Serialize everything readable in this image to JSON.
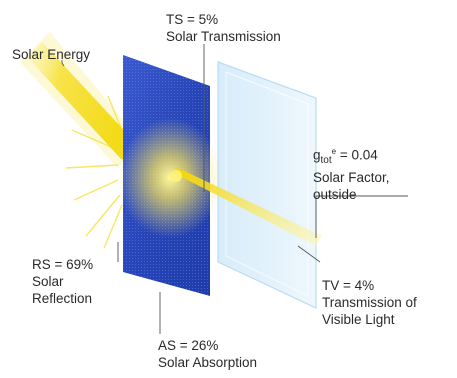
{
  "diagram": {
    "solar_energy": {
      "label": "Solar Energy"
    },
    "transmission": {
      "value": "TS = 5%",
      "name": "Solar Transmission"
    },
    "solar_factor": {
      "value_prefix": "g",
      "subscript": "tot",
      "superscript": "e",
      "value_suffix": " = 0.04",
      "name_line1": "Solar Factor,",
      "name_line2": "outside"
    },
    "reflection": {
      "value": "RS = 69%",
      "name_line1": "Solar",
      "name_line2": "Reflection"
    },
    "absorption": {
      "value": "AS = 26%",
      "name": "Solar Absorption"
    },
    "visible": {
      "value": "TV = 4%",
      "name_line1": "Transmission of",
      "name_line2": "Visible Light"
    }
  },
  "colors": {
    "glass_front": "#2f4fc2",
    "glass_back": "#cfe6f7",
    "sun_beam": "#f5e13a",
    "leader_line": "#555555"
  }
}
